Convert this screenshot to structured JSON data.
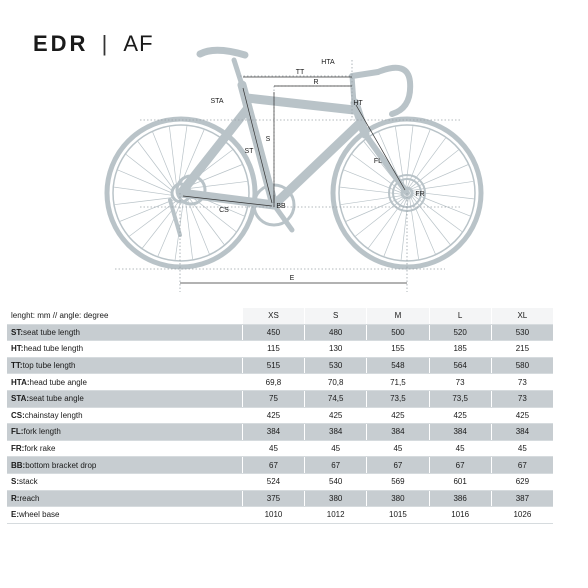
{
  "brand": {
    "name": "EDR",
    "separator": "|",
    "model": "AF"
  },
  "diagram_labels": {
    "tt": "TT",
    "r": "R",
    "hta": "HTA",
    "sta": "STA",
    "ht": "HT",
    "st": "ST",
    "s": "S",
    "fl": "FL",
    "fr": "FR",
    "bb": "BB",
    "cs": "CS",
    "e": "E"
  },
  "table": {
    "header_label": "lenght: mm // angle: degree",
    "sizes": [
      "XS",
      "S",
      "M",
      "L",
      "XL"
    ],
    "rows": [
      {
        "code": "ST:",
        "name": "seat tube length",
        "values": [
          "450",
          "480",
          "500",
          "520",
          "530"
        ],
        "shaded": true
      },
      {
        "code": "HT:",
        "name": "head tube length",
        "values": [
          "115",
          "130",
          "155",
          "185",
          "215"
        ],
        "shaded": false
      },
      {
        "code": "TT:",
        "name": "top tube length",
        "values": [
          "515",
          "530",
          "548",
          "564",
          "580"
        ],
        "shaded": true
      },
      {
        "code": "HTA:",
        "name": "head tube angle",
        "values": [
          "69,8",
          "70,8",
          "71,5",
          "73",
          "73"
        ],
        "shaded": false
      },
      {
        "code": "STA:",
        "name": "seat tube angle",
        "values": [
          "75",
          "74,5",
          "73,5",
          "73,5",
          "73"
        ],
        "shaded": true
      },
      {
        "code": "CS:",
        "name": "chainstay length",
        "values": [
          "425",
          "425",
          "425",
          "425",
          "425"
        ],
        "shaded": false
      },
      {
        "code": "FL:",
        "name": "fork length",
        "values": [
          "384",
          "384",
          "384",
          "384",
          "384"
        ],
        "shaded": true
      },
      {
        "code": "FR:",
        "name": "fork rake",
        "values": [
          "45",
          "45",
          "45",
          "45",
          "45"
        ],
        "shaded": false
      },
      {
        "code": "BB:",
        "name": "bottom bracket drop",
        "values": [
          "67",
          "67",
          "67",
          "67",
          "67"
        ],
        "shaded": true
      },
      {
        "code": "S:",
        "name": "stack",
        "values": [
          "524",
          "540",
          "569",
          "601",
          "629"
        ],
        "shaded": false
      },
      {
        "code": "R:",
        "name": "reach",
        "values": [
          "375",
          "380",
          "380",
          "386",
          "387"
        ],
        "shaded": true
      },
      {
        "code": "E:",
        "name": "wheel base",
        "values": [
          "1010",
          "1012",
          "1015",
          "1016",
          "1026"
        ],
        "shaded": false
      }
    ]
  }
}
